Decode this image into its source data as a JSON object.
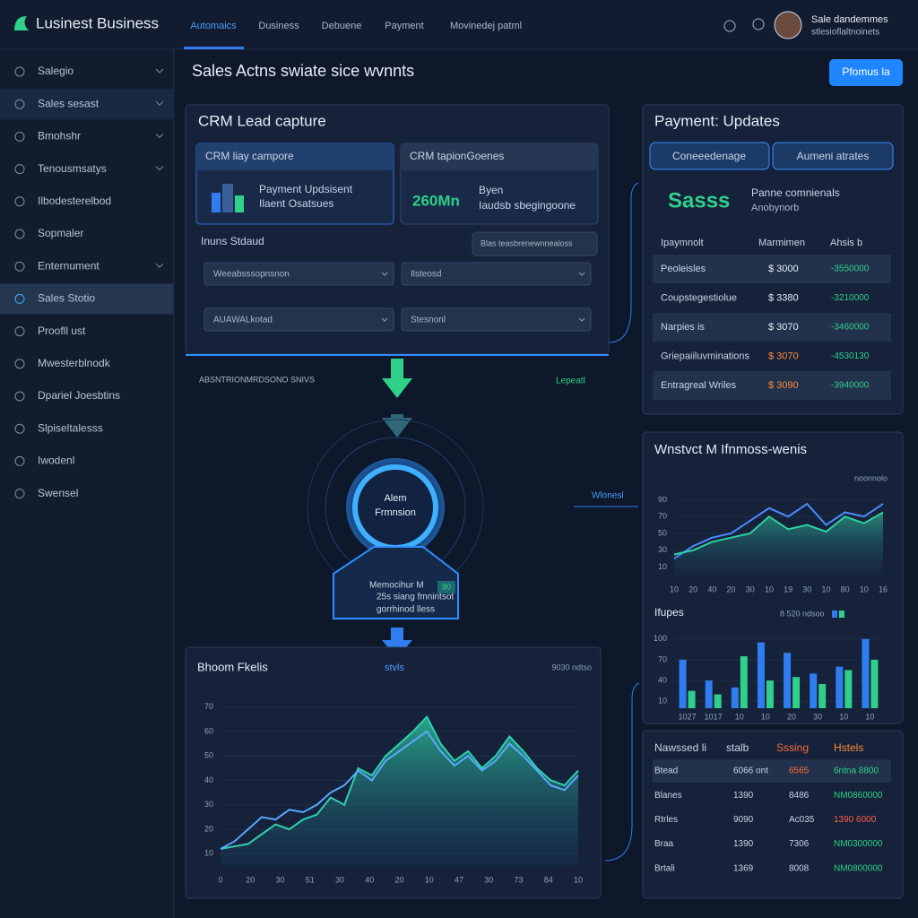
{
  "header": {
    "brand": "Lusinest Business",
    "tabs": [
      "Automaics",
      "Dusiness",
      "Debuene",
      "Payment",
      "Movinedej patml"
    ],
    "user_name": "Sale dandemmes",
    "user_sub": "stlesioflaltnoinets"
  },
  "sidebar": {
    "items": [
      "Salegio",
      "Sales sesast",
      "Bmohshr",
      "Tenousmsatys",
      "Ilbodesterelbod",
      "Sopmaler",
      "Enternument",
      "Sales Stotio",
      "Proofll ust",
      "Mwesterblnodk",
      "Dpariel Joesbtins",
      "Slpiseltalesss",
      "Iwodenl",
      "Swensel"
    ]
  },
  "page": {
    "title": "Sales Actns swiate sice wvnnts",
    "button": "Pfomus la"
  },
  "crm": {
    "title": "CRM Lead capture",
    "card1": {
      "header": "CRM liay campore",
      "line1": "Payment Updsisent",
      "line2": "Ilaent Osatsues"
    },
    "card2": {
      "header": "CRM tapionGoenes",
      "big": "260Mn",
      "line1": "Byen",
      "line2": "Iaudsb sbegingoone"
    },
    "label": "Inuns Stdaud",
    "search": "Blas teasbrenewnnealoss",
    "inputs": [
      "Weeabsssopnsnon",
      "Ilsteosd",
      "AUAWALkotad",
      "Stesnonl"
    ]
  },
  "flow": {
    "label": "ABSNTRIONMRDSONO SNIVS",
    "status": "Lepeatl",
    "node": [
      "Alem",
      "Frmnsion"
    ],
    "box": [
      "Memocihur M",
      "25s siang fmnintsot",
      "gorrhinod lless"
    ],
    "badge": "90",
    "side_label": "Wlonesl"
  },
  "payment": {
    "title": "Payment: Updates",
    "tabs": [
      "Coneeedenage",
      "Aumeni atrates"
    ],
    "banner": "Sasss",
    "banner_line1": "Panne comnienals",
    "banner_line2": "Anobynorb",
    "columns": [
      "Ipaymnolt",
      "Marmimen",
      "Ahsis b"
    ],
    "rows": [
      [
        "Peoleisles",
        "$ 3000",
        "-3550000"
      ],
      [
        "Coupstegestiolue",
        "$ 3380",
        "-3210000"
      ],
      [
        "Narpies is",
        "$ 3070",
        "-3460000"
      ],
      [
        "Griepaiiluvminations",
        "$ 3070",
        "-4530130"
      ],
      [
        "Entragreal Wriles",
        "$ 3090",
        "-3940000"
      ]
    ]
  },
  "trend_chart": {
    "type": "line",
    "title": "Wnstvct M Ifnmoss-wenis",
    "subtitle": "noonnolo",
    "ylim": [
      0,
      100
    ],
    "yticks": [
      10,
      30,
      50,
      70,
      90
    ],
    "xlabels": [
      "10",
      "20",
      "40",
      "20",
      "30",
      "10",
      "19",
      "30",
      "10",
      "80",
      "10",
      "16"
    ],
    "series": [
      {
        "color": "#4a8cff",
        "values": [
          20,
          35,
          45,
          50,
          65,
          80,
          70,
          85,
          60,
          75,
          70,
          85
        ]
      },
      {
        "color": "#2fd0a0",
        "values": [
          25,
          30,
          40,
          45,
          50,
          70,
          55,
          60,
          52,
          70,
          62,
          75
        ]
      }
    ]
  },
  "bar_chart": {
    "type": "bar",
    "title": "Ifupes",
    "legend": "8 520 ndsoo",
    "ylim": [
      0,
      110
    ],
    "yticks": [
      10,
      40,
      70,
      100
    ],
    "categories": [
      "1027",
      "1017",
      "10",
      "10",
      "20",
      "30",
      "10",
      "10"
    ],
    "series": [
      {
        "color": "#2f7df0",
        "values": [
          70,
          40,
          30,
          95,
          80,
          50,
          60,
          100
        ]
      },
      {
        "color": "#2fd08a",
        "values": [
          25,
          20,
          75,
          40,
          45,
          35,
          55,
          70
        ]
      }
    ]
  },
  "status_table": {
    "columns": [
      "Nawssed li",
      "stalb",
      "Sssing",
      "Hstels"
    ],
    "rows": [
      [
        "Btead",
        "6066 ont",
        "6565",
        "6ntna 8800"
      ],
      [
        "Blanes",
        "1390",
        "8486",
        "NM0860000"
      ],
      [
        "Rtrles",
        "9090",
        "Ac035",
        "1390 6000"
      ],
      [
        "Braa",
        "1390",
        "7306",
        "NM0300000"
      ],
      [
        "Brtali",
        "1369",
        "8008",
        "NM0800000"
      ]
    ]
  },
  "area_chart": {
    "type": "area",
    "title": "Bhoom Fkelis",
    "subtitle": "stvls",
    "note": "9030 ndtso",
    "ylim": [
      5,
      75
    ],
    "yticks": [
      10,
      20,
      30,
      40,
      50,
      60,
      70
    ],
    "xlabels": [
      "0",
      "20",
      "30",
      "51",
      "30",
      "40",
      "20",
      "10",
      "47",
      "30",
      "73",
      "84",
      "10"
    ],
    "series": [
      {
        "color": "#2fd0b0",
        "values": [
          12,
          13,
          14,
          18,
          22,
          20,
          24,
          26,
          33,
          30,
          45,
          42,
          50,
          55,
          60,
          66,
          55,
          48,
          52,
          45,
          50,
          58,
          52,
          45,
          40,
          38,
          44
        ]
      },
      {
        "color": "#5aa8ff",
        "values": [
          12,
          15,
          20,
          25,
          24,
          28,
          27,
          30,
          35,
          38,
          44,
          40,
          48,
          52,
          56,
          60,
          52,
          46,
          50,
          44,
          48,
          55,
          50,
          44,
          38,
          36,
          42
        ]
      }
    ]
  }
}
